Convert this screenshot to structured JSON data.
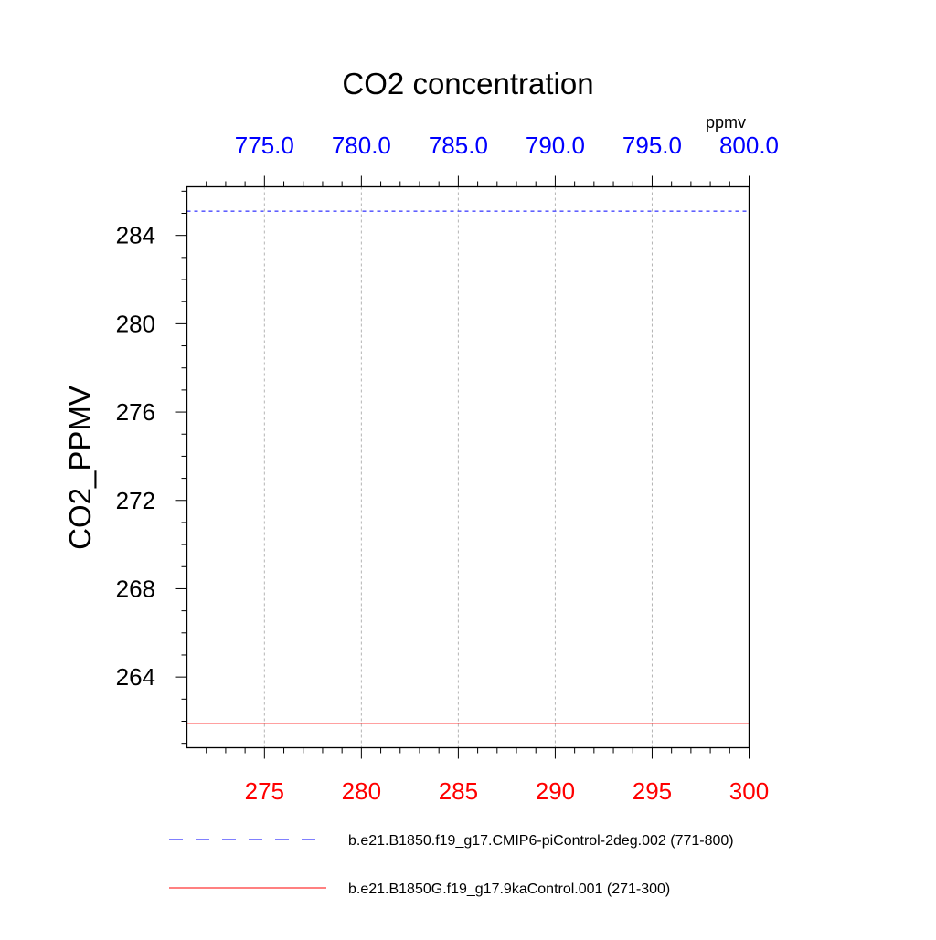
{
  "chart_data": {
    "type": "line",
    "title": "CO2 concentration",
    "units_label": "ppmv",
    "ylabel": "CO2_PPMV",
    "ylim": [
      260.8,
      286.2
    ],
    "y_ticks": [
      264,
      268,
      272,
      276,
      280,
      284
    ],
    "x_bottom": {
      "xlim": [
        271,
        300
      ],
      "ticks": [
        275,
        280,
        285,
        290,
        295,
        300
      ],
      "tick_labels": [
        "275",
        "280",
        "285",
        "290",
        "295",
        "300"
      ],
      "color": "#ff0000"
    },
    "x_top": {
      "xlim": [
        771,
        800
      ],
      "ticks": [
        775,
        780,
        785,
        790,
        795,
        800
      ],
      "tick_labels": [
        "775.0",
        "780.0",
        "785.0",
        "790.0",
        "795.0",
        "800.0"
      ],
      "color": "#0000ff"
    },
    "grid": true,
    "legend_position": "bottom",
    "series": [
      {
        "name": "b.e21.B1850.f19_g17.CMIP6-piControl-2deg.002 (771-800)",
        "axis": "top",
        "color": "#0000ff",
        "dash": "dashed",
        "x": [
          771,
          800
        ],
        "y": [
          285.1,
          285.1
        ]
      },
      {
        "name": "b.e21.B1850G.f19_g17.9kaControl.001 (271-300)",
        "axis": "bottom",
        "color": "#ff0000",
        "dash": "solid",
        "x": [
          271,
          300
        ],
        "y": [
          261.9,
          261.9
        ]
      }
    ]
  }
}
